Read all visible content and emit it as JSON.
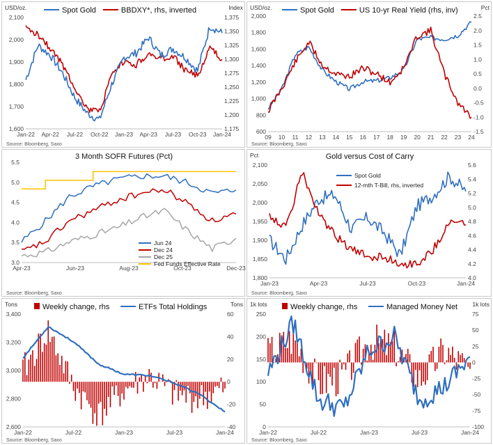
{
  "colors": {
    "gold": "#2f6fbf",
    "red": "#c00000",
    "gray": "#a6a6a6",
    "amber": "#ffc000",
    "axis": "#bfbfbf",
    "bar": "#c00000"
  },
  "panels": [
    {
      "id": "p1",
      "left_unit": "USD/oz.",
      "right_unit": "Index",
      "source": "Source: Bloomberg, Saxo",
      "legend": [
        {
          "label": "Spot Gold",
          "color": "#2f6fbf"
        },
        {
          "label": "BBDXY*, rhs, inverted",
          "color": "#c00000"
        }
      ],
      "x_ticks": [
        "Jan-22",
        "Apr-22",
        "Jul-22",
        "Oct-22",
        "Jan-23",
        "Apr-23",
        "Jul-23",
        "Oct-23",
        "Jan-24"
      ],
      "y_ticks": [
        "1,600",
        "1,700",
        "1,800",
        "1,900",
        "2,000",
        "2,100"
      ],
      "y2_ticks": [
        "1,175",
        "1,200",
        "1,225",
        "1,250",
        "1,275",
        "1,300",
        "1,325",
        "1,350",
        "1,375"
      ]
    },
    {
      "id": "p2",
      "left_unit": "USD/oz.",
      "right_unit": "Pct",
      "source": "Source: Bloomberg, Saxo",
      "legend": [
        {
          "label": "Spot Gold",
          "color": "#2f6fbf"
        },
        {
          "label": "US 10-yr Real Yield (rhs, inv)",
          "color": "#c00000"
        }
      ],
      "x_ticks": [
        "09",
        "10",
        "11",
        "12",
        "13",
        "14",
        "15",
        "16",
        "17",
        "18",
        "19",
        "20",
        "21",
        "22",
        "23",
        "24"
      ],
      "y_ticks": [
        "600",
        "800",
        "1,000",
        "1,200",
        "1,400",
        "1,600",
        "1,800",
        "2,000"
      ],
      "y2_ticks": [
        "-1.5",
        "-1.0",
        "-0.5",
        "0.0",
        "0.5",
        "1.0",
        "1.5",
        "2.0",
        "2.5"
      ]
    },
    {
      "id": "p3",
      "title": "3 Month SOFR Futures (Pct)",
      "source": "Source: Bloomberg, Saxo",
      "legend": [
        {
          "label": "Jun 24",
          "color": "#2f6fbf"
        },
        {
          "label": "Dec 24",
          "color": "#c00000"
        },
        {
          "label": "Dec 25",
          "color": "#a6a6a6"
        },
        {
          "label": "Fed Funds Effective Rate",
          "color": "#ffc000"
        }
      ],
      "x_ticks": [
        "Apr-23",
        "Jun-23",
        "Aug-23",
        "Oct-23",
        "Dec-23"
      ],
      "y_ticks": [
        "3.0",
        "3.5",
        "4.0",
        "4.5",
        "5.0",
        "5.5"
      ]
    },
    {
      "id": "p4",
      "title": "Gold versus Cost of Carry",
      "left_unit": "Pct",
      "source": "Source: Bloomberg, Saxo",
      "legend": [
        {
          "label": "Spot Gold",
          "color": "#2f6fbf"
        },
        {
          "label": "12-mth T-Bill, rhs, inverted",
          "color": "#c00000"
        }
      ],
      "x_ticks": [
        "Jan-23",
        "Apr-23",
        "Jul-23",
        "Oct-23",
        "Jan-24"
      ],
      "y_ticks": [
        "1,800",
        "1,850",
        "1,900",
        "1,950",
        "2,000",
        "2,050",
        "2,100"
      ],
      "y2_ticks": [
        "4.0",
        "4.2",
        "4.4",
        "4.6",
        "4.8",
        "5.0",
        "5.2",
        "5.4",
        "5.6"
      ]
    },
    {
      "id": "p5",
      "left_unit": "Tons",
      "right_unit": "Tons",
      "source": "Source: Bloomberg, Saxo",
      "legend": [
        {
          "label": "Weekly change, rhs",
          "color": "#c00000"
        },
        {
          "label": "ETFs Total Holdings",
          "color": "#2f6fbf"
        }
      ],
      "x_ticks": [
        "Jan-22",
        "Jul-22",
        "Jan-23",
        "Jul-23",
        "Jan-24"
      ],
      "y_ticks": [
        "2,600",
        "2,800",
        "3,000",
        "3,200",
        "3,400"
      ],
      "y2_ticks": [
        "-40",
        "-20",
        "0",
        "20",
        "40",
        "60"
      ]
    },
    {
      "id": "p6",
      "left_unit": "1k lots",
      "right_unit": "1k lots",
      "source": "Source: Bloomberg, Saxo",
      "legend": [
        {
          "label": "Weekly change, rhs",
          "color": "#c00000"
        },
        {
          "label": "Managed Money Net",
          "color": "#2f6fbf"
        }
      ],
      "x_ticks": [
        "Jan-22",
        "Jul-22",
        "Jan-23",
        "Jul-23",
        "Jan-24"
      ],
      "y_ticks": [
        "0",
        "50",
        "100",
        "150",
        "200",
        "250"
      ],
      "y2_ticks": [
        "-100",
        "-75",
        "-50",
        "-25",
        "0",
        "25",
        "50",
        "75"
      ]
    }
  ],
  "chart_data": [
    {
      "type": "line",
      "panel": "p1",
      "x": [
        "Jan-22",
        "Mar-22",
        "Apr-22",
        "Jun-22",
        "Jul-22",
        "Sep-22",
        "Oct-22",
        "Dec-22",
        "Jan-23",
        "Mar-23",
        "Apr-23",
        "Jun-23",
        "Jul-23",
        "Sep-23",
        "Oct-23",
        "Dec-23",
        "Jan-24"
      ],
      "series": [
        {
          "name": "Spot Gold",
          "axis": "left",
          "values": [
            1820,
            1975,
            1930,
            1850,
            1740,
            1670,
            1640,
            1800,
            1920,
            1940,
            2010,
            1930,
            1960,
            1920,
            1860,
            2060,
            2030
          ]
        },
        {
          "name": "BBDXY*, rhs, inverted",
          "axis": "right",
          "values": [
            1195,
            1205,
            1230,
            1260,
            1300,
            1340,
            1345,
            1280,
            1255,
            1260,
            1240,
            1250,
            1245,
            1270,
            1280,
            1230,
            1250
          ]
        }
      ],
      "ylim": [
        1600,
        2100
      ],
      "y2lim": [
        1175,
        1375
      ],
      "y2_inverted": true
    },
    {
      "type": "line",
      "panel": "p2",
      "x": [
        "09",
        "10",
        "11",
        "12",
        "13",
        "14",
        "15",
        "16",
        "17",
        "18",
        "19",
        "20",
        "21",
        "22",
        "23",
        "24"
      ],
      "series": [
        {
          "name": "Spot Gold",
          "axis": "left",
          "values": [
            900,
            1150,
            1600,
            1700,
            1400,
            1250,
            1150,
            1250,
            1260,
            1300,
            1400,
            1800,
            1820,
            1800,
            1850,
            2020
          ]
        },
        {
          "name": "US 10-yr Real Yield (rhs, inv)",
          "axis": "right",
          "values": [
            1.8,
            1.0,
            0.1,
            -0.6,
            0.2,
            0.5,
            0.6,
            0.3,
            0.5,
            0.8,
            0.3,
            -0.8,
            -1.0,
            0.5,
            1.5,
            2.0
          ]
        }
      ],
      "ylim": [
        600,
        2100
      ],
      "y2lim": [
        -1.5,
        2.5
      ],
      "y2_inverted": true
    },
    {
      "type": "line",
      "panel": "p3",
      "x": [
        "Apr-23",
        "May-23",
        "Jun-23",
        "Jul-23",
        "Aug-23",
        "Sep-23",
        "Oct-23",
        "Nov-23",
        "Dec-23",
        "Jan-24"
      ],
      "series": [
        {
          "name": "Jun 24",
          "values": [
            3.3,
            3.9,
            4.6,
            4.9,
            5.1,
            5.2,
            5.2,
            5.0,
            4.7,
            4.8
          ]
        },
        {
          "name": "Dec 24",
          "values": [
            3.0,
            3.3,
            3.9,
            4.2,
            4.5,
            4.7,
            4.8,
            4.4,
            3.9,
            4.1
          ]
        },
        {
          "name": "Dec 25",
          "values": [
            2.9,
            3.0,
            3.3,
            3.5,
            3.7,
            4.0,
            4.2,
            3.6,
            3.1,
            3.4
          ]
        },
        {
          "name": "Fed Funds Effective Rate",
          "values": [
            4.83,
            5.08,
            5.08,
            5.33,
            5.33,
            5.33,
            5.33,
            5.33,
            5.33,
            5.33
          ]
        }
      ],
      "ylim": [
        2.7,
        5.6
      ]
    },
    {
      "type": "line",
      "panel": "p4",
      "x": [
        "Jan-23",
        "Feb-23",
        "Mar-23",
        "Apr-23",
        "May-23",
        "Jun-23",
        "Jul-23",
        "Aug-23",
        "Sep-23",
        "Oct-23",
        "Nov-23",
        "Dec-23",
        "Jan-24"
      ],
      "series": [
        {
          "name": "Spot Gold",
          "axis": "left",
          "values": [
            1900,
            1850,
            1940,
            2010,
            2020,
            1930,
            1960,
            1920,
            1860,
            1990,
            2020,
            2070,
            2030
          ]
        },
        {
          "name": "12-mth T-Bill, rhs, inverted",
          "axis": "right",
          "values": [
            4.7,
            4.9,
            4.1,
            4.7,
            5.0,
            5.2,
            5.3,
            5.3,
            5.4,
            5.4,
            5.2,
            4.8,
            4.85
          ]
        }
      ],
      "ylim": [
        1800,
        2100
      ],
      "y2lim": [
        4.0,
        5.6
      ],
      "y2_inverted": true
    },
    {
      "type": "bar+line",
      "panel": "p5",
      "x": [
        "Jan-22",
        "Apr-22",
        "Jul-22",
        "Oct-22",
        "Jan-23",
        "Apr-23",
        "Jul-23",
        "Oct-23",
        "Jan-24"
      ],
      "series": [
        {
          "name": "ETFs Total Holdings",
          "axis": "left",
          "values": [
            3050,
            3300,
            3180,
            3000,
            2920,
            2910,
            2850,
            2760,
            2620
          ]
        },
        {
          "name": "Weekly change, rhs",
          "type": "bar",
          "axis": "right",
          "values": [
            10,
            45,
            -5,
            -30,
            -8,
            5,
            -12,
            -15,
            -6
          ]
        }
      ],
      "ylim": [
        2500,
        3400
      ],
      "y2lim": [
        -40,
        60
      ]
    },
    {
      "type": "bar+line",
      "panel": "p6",
      "x": [
        "Jan-22",
        "Apr-22",
        "Jul-22",
        "Oct-22",
        "Jan-23",
        "Apr-23",
        "Jul-23",
        "Oct-23",
        "Jan-24"
      ],
      "series": [
        {
          "name": "Managed Money Net",
          "axis": "left",
          "values": [
            120,
            230,
            60,
            40,
            170,
            200,
            60,
            90,
            155
          ]
        },
        {
          "name": "Weekly change, rhs",
          "type": "bar",
          "axis": "right",
          "values": [
            15,
            40,
            -30,
            -20,
            35,
            25,
            -25,
            20,
            -10
          ]
        }
      ],
      "ylim": [
        0,
        250
      ],
      "y2lim": [
        -100,
        75
      ]
    }
  ]
}
